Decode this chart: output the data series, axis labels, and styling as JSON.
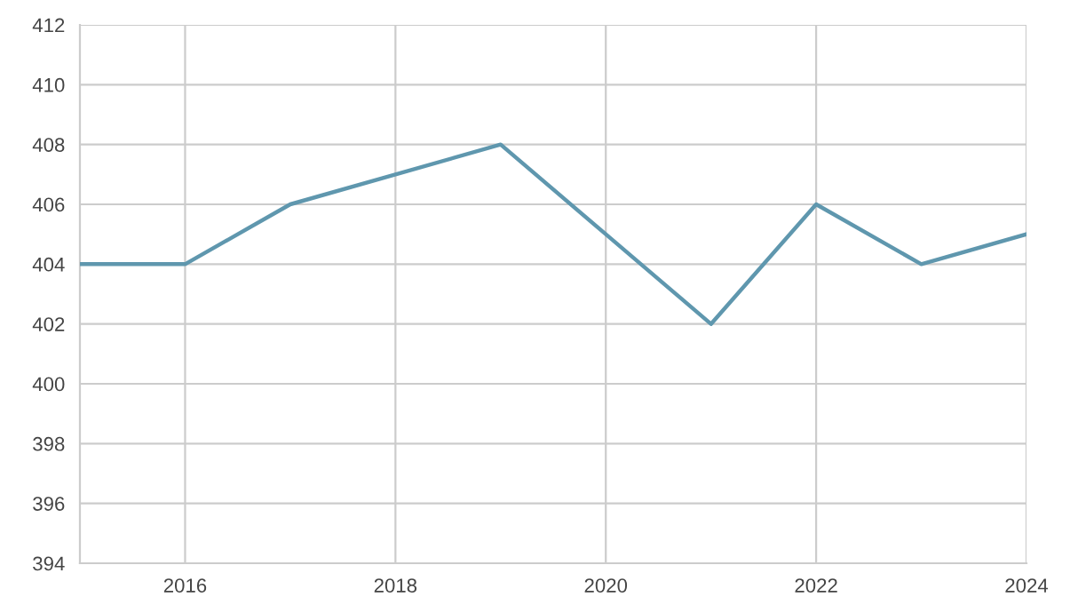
{
  "chart_data": {
    "type": "line",
    "x": [
      2015,
      2016,
      2017,
      2018,
      2019,
      2020,
      2021,
      2022,
      2023,
      2024
    ],
    "series": [
      {
        "color": "#5f97ae",
        "values": [
          404,
          404,
          406,
          407,
          408,
          405,
          402,
          406,
          404,
          405
        ]
      }
    ],
    "xlim": [
      2015,
      2024
    ],
    "xticks": [
      2016,
      2018,
      2020,
      2022,
      2024
    ],
    "ylim": [
      394,
      412
    ],
    "yticks": [
      394,
      396,
      398,
      400,
      402,
      404,
      406,
      408,
      410,
      412
    ],
    "grid": true,
    "legend": false,
    "marker": "none",
    "line_style": "solid"
  }
}
